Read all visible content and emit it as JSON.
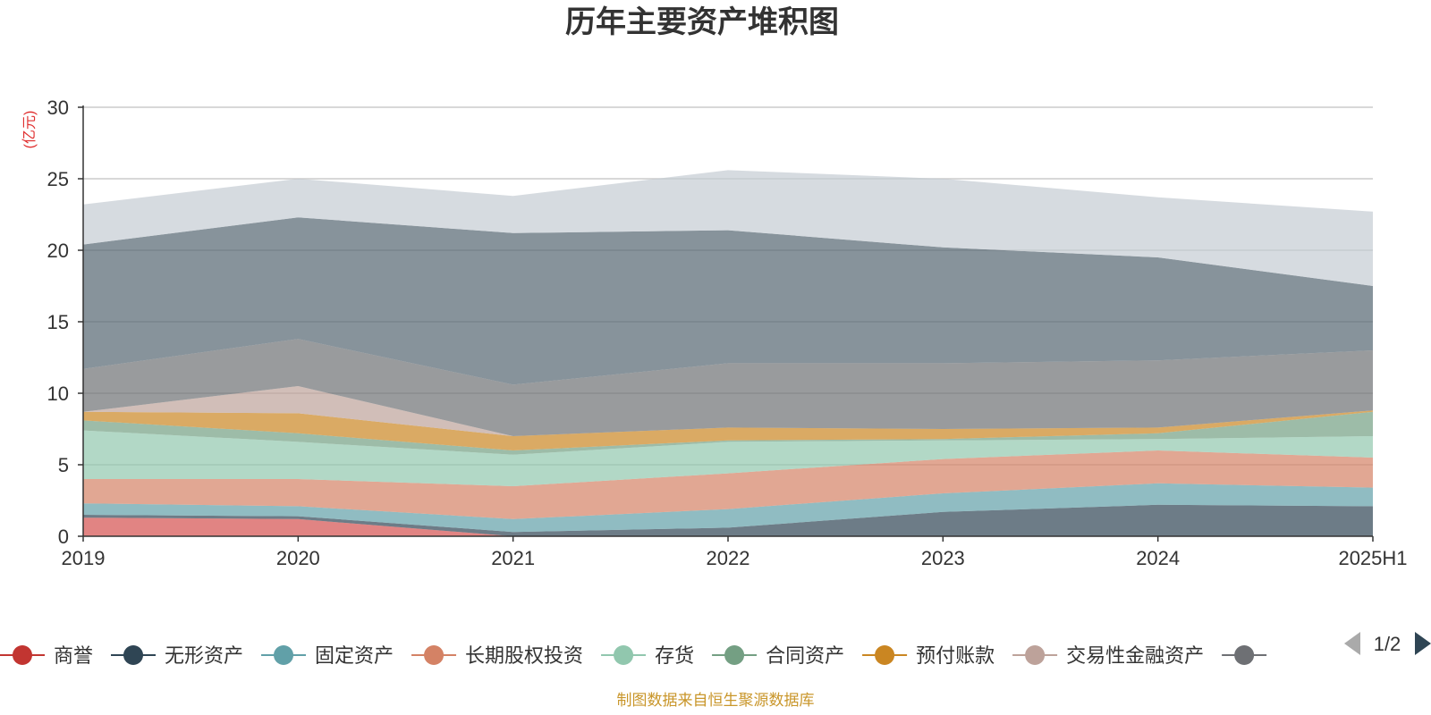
{
  "chart_data": {
    "type": "area",
    "stacked": true,
    "title": "历年主要资产堆积图",
    "unit": "(亿元)",
    "categories": [
      "2019",
      "2020",
      "2021",
      "2022",
      "2023",
      "2024",
      "2025H1"
    ],
    "ylim": [
      0,
      30
    ],
    "yticks": [
      0,
      5,
      10,
      15,
      20,
      25,
      30
    ],
    "series": [
      {
        "name": "商誉",
        "color": "#d4504e",
        "legend_color": "#c23531",
        "values": [
          1.3,
          1.2,
          0.0,
          0.0,
          0.0,
          0.0,
          0.0
        ]
      },
      {
        "name": "无形资产",
        "color": "#2f4554",
        "legend_color": "#2f4554",
        "values": [
          0.2,
          0.2,
          0.3,
          0.6,
          1.7,
          2.2,
          2.1
        ]
      },
      {
        "name": "固定资产",
        "color": "#61a0a8",
        "legend_color": "#61a0a8",
        "values": [
          0.8,
          0.7,
          0.9,
          1.3,
          1.3,
          1.5,
          1.3
        ]
      },
      {
        "name": "长期股权投资",
        "color": "#d48265",
        "legend_color": "#d48265",
        "values": [
          1.7,
          1.9,
          2.3,
          2.5,
          2.4,
          2.3,
          2.1
        ]
      },
      {
        "name": "存货",
        "color": "#91c7ae",
        "legend_color": "#91c7ae",
        "values": [
          3.4,
          2.6,
          2.2,
          2.2,
          1.3,
          0.8,
          1.5
        ]
      },
      {
        "name": "合同资产",
        "color": "#749f83",
        "legend_color": "#749f83",
        "values": [
          0.7,
          0.6,
          0.3,
          0.1,
          0.1,
          0.4,
          1.7
        ]
      },
      {
        "name": "预付账款",
        "color": "#ca8622",
        "legend_color": "#ca8622",
        "values": [
          0.6,
          1.4,
          1.0,
          0.9,
          0.7,
          0.4,
          0.1
        ]
      },
      {
        "name": "交易性金融资产",
        "color": "#bda29a",
        "legend_color": "#bda29a",
        "values": [
          0.0,
          1.9,
          0.0,
          0.0,
          0.0,
          0.0,
          0.0
        ]
      },
      {
        "name": "",
        "color": "#6e7074",
        "legend_color": "#6e7074",
        "values": [
          3.0,
          3.3,
          3.6,
          4.5,
          4.6,
          4.7,
          4.2
        ]
      },
      {
        "name": "",
        "color": "#546570",
        "legend_color": "#546570",
        "values": [
          8.7,
          8.5,
          10.6,
          9.3,
          8.1,
          7.2,
          4.5
        ]
      },
      {
        "name": "",
        "color": "#c4ccd3",
        "legend_color": "#c4ccd3",
        "values": [
          2.8,
          2.7,
          2.6,
          4.2,
          4.8,
          4.2,
          5.2
        ]
      }
    ]
  },
  "legend": {
    "visible_count": 9,
    "page_indicator": "1/2"
  },
  "footer": {
    "source": "制图数据来自恒生聚源数据库"
  }
}
